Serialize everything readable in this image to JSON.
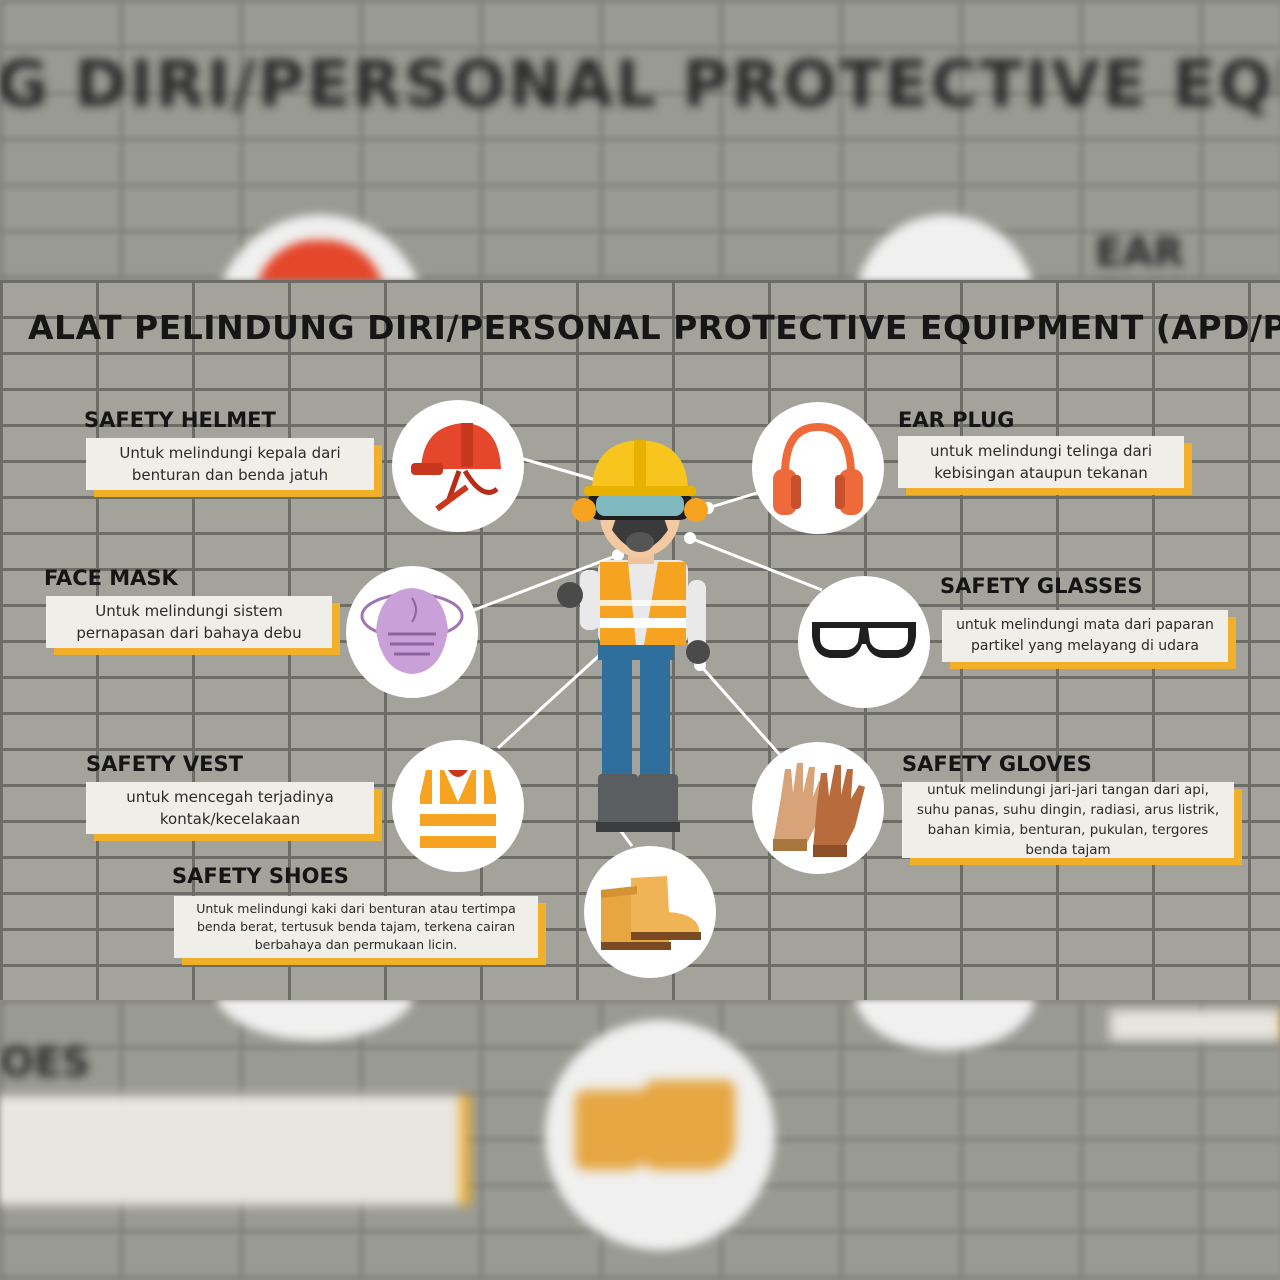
{
  "title": "ALAT PELINDUNG DIRI/PERSONAL PROTECTIVE EQUIPMENT (APD/PPE)",
  "items": {
    "helmet": {
      "heading": "SAFETY HELMET",
      "desc": "Untuk melindungi kepala dari benturan dan benda jatuh"
    },
    "ear_plug": {
      "heading": "EAR PLUG",
      "desc": "untuk melindungi telinga dari kebisingan ataupun tekanan"
    },
    "face_mask": {
      "heading": "FACE MASK",
      "desc": "Untuk melindungi sistem pernapasan dari bahaya debu"
    },
    "glasses": {
      "heading": "SAFETY GLASSES",
      "desc": "untuk melindungi mata dari paparan partikel yang melayang di udara"
    },
    "vest": {
      "heading": "SAFETY VEST",
      "desc": "untuk mencegah terjadinya kontak/kecelakaan"
    },
    "gloves": {
      "heading": "SAFETY GLOVES",
      "desc": "untuk melindungi jari-jari tangan dari api, suhu panas, suhu dingin, radiasi, arus listrik, bahan kimia, benturan, pukulan, tergores benda tajam"
    },
    "shoes": {
      "heading": "SAFETY SHOES",
      "desc": "Untuk melindungi kaki dari benturan atau tertimpa benda berat, tertusuk benda tajam, terkena cairan berbahaya dan permukaan licin."
    }
  },
  "icons": {
    "helmet": "safety-helmet-icon",
    "ear_plug": "ear-muff-icon",
    "face_mask": "face-mask-icon",
    "glasses": "safety-goggles-icon",
    "vest": "safety-vest-icon",
    "gloves": "safety-gloves-icon",
    "shoes": "safety-boots-icon",
    "worker": "construction-worker-illustration"
  },
  "colors": {
    "accent": "#f2b02a",
    "helmet_red": "#e4472b",
    "ear_orange": "#ef6a3a",
    "mask_purple": "#c9a0d8",
    "vest_orange": "#f6a322",
    "glove_brown": "#b86b3c",
    "boot_tan": "#e6a642",
    "worker_blue": "#2f6f9e"
  }
}
